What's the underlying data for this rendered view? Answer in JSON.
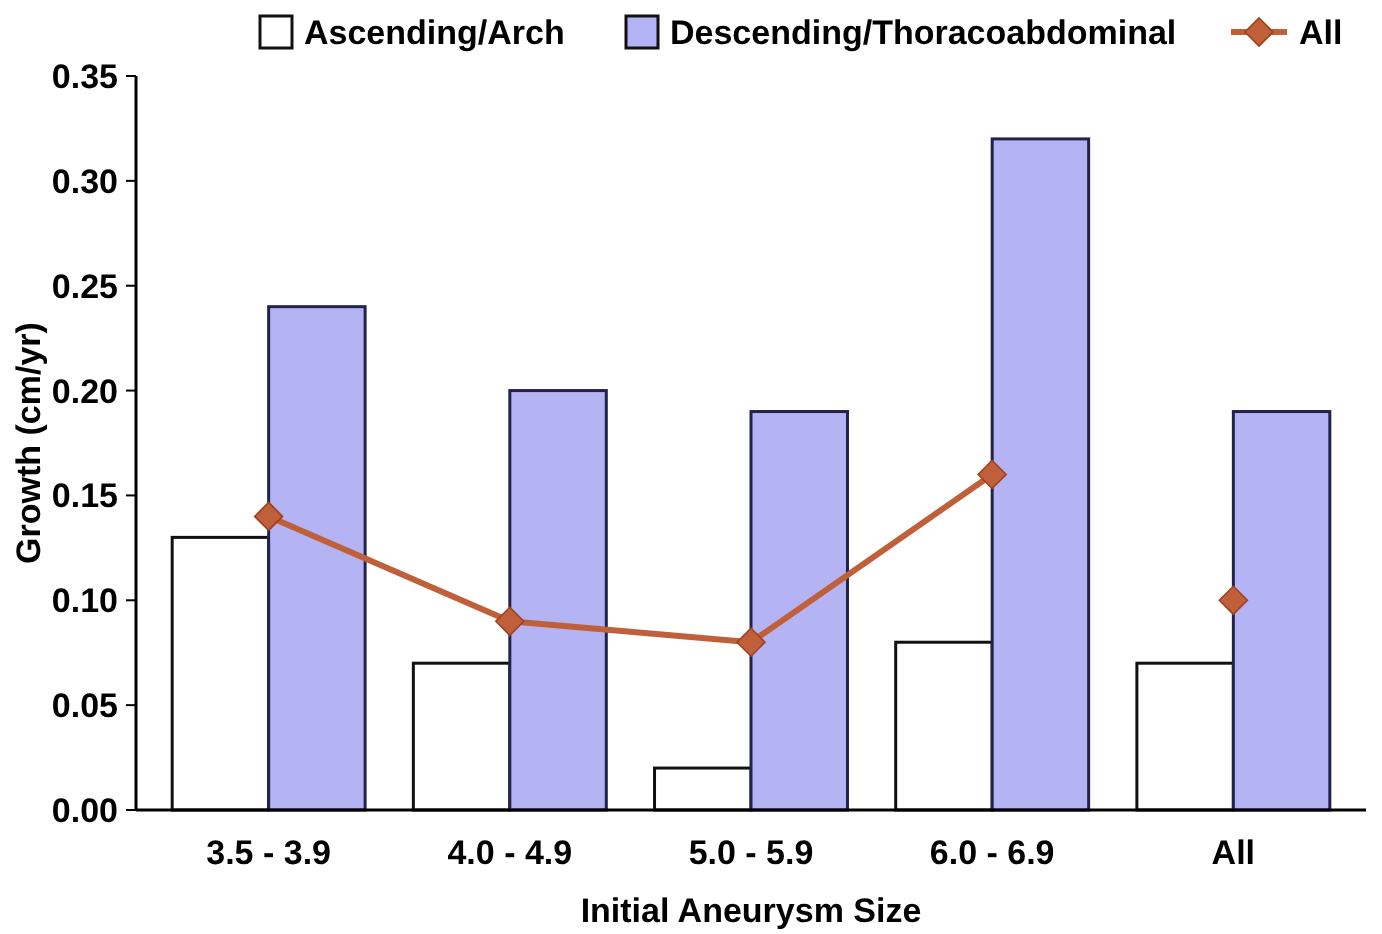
{
  "chart_data": {
    "type": "bar",
    "xlabel": "Initial Aneurysm Size",
    "ylabel": "Growth (cm/yr)",
    "categories": [
      "3.5 - 3.9",
      "4.0 - 4.9",
      "5.0 - 5.9",
      "6.0 - 6.9",
      "All"
    ],
    "series": [
      {
        "name": "Ascending/Arch",
        "color": "#ffffff",
        "values": [
          0.13,
          0.07,
          0.02,
          0.08,
          0.07
        ]
      },
      {
        "name": "Descending/Thoracoabdominal",
        "color": "#b4b4f4",
        "values": [
          0.24,
          0.2,
          0.19,
          0.32,
          0.19
        ]
      },
      {
        "name": "All",
        "type": "line",
        "color": "#c0603a",
        "values": [
          0.14,
          0.09,
          0.08,
          0.16,
          null
        ]
      },
      {
        "type": "scatter",
        "color": "#c0603a",
        "values": [
          null,
          null,
          null,
          null,
          0.1
        ]
      }
    ],
    "ylim": [
      0,
      0.35
    ],
    "yticks": [
      {
        "value": 0,
        "label": "0.00"
      },
      {
        "value": 0.05,
        "label": "0.05"
      },
      {
        "value": 0.1,
        "label": "0.10"
      },
      {
        "value": 0.15,
        "label": "0.15"
      },
      {
        "value": 0.2,
        "label": "0.20"
      },
      {
        "value": 0.25,
        "label": "0.25"
      },
      {
        "value": 0.3,
        "label": "0.30"
      },
      {
        "value": 0.35,
        "label": "0.35"
      }
    ],
    "grid": false,
    "legend": "top",
    "marker": "diamond"
  }
}
